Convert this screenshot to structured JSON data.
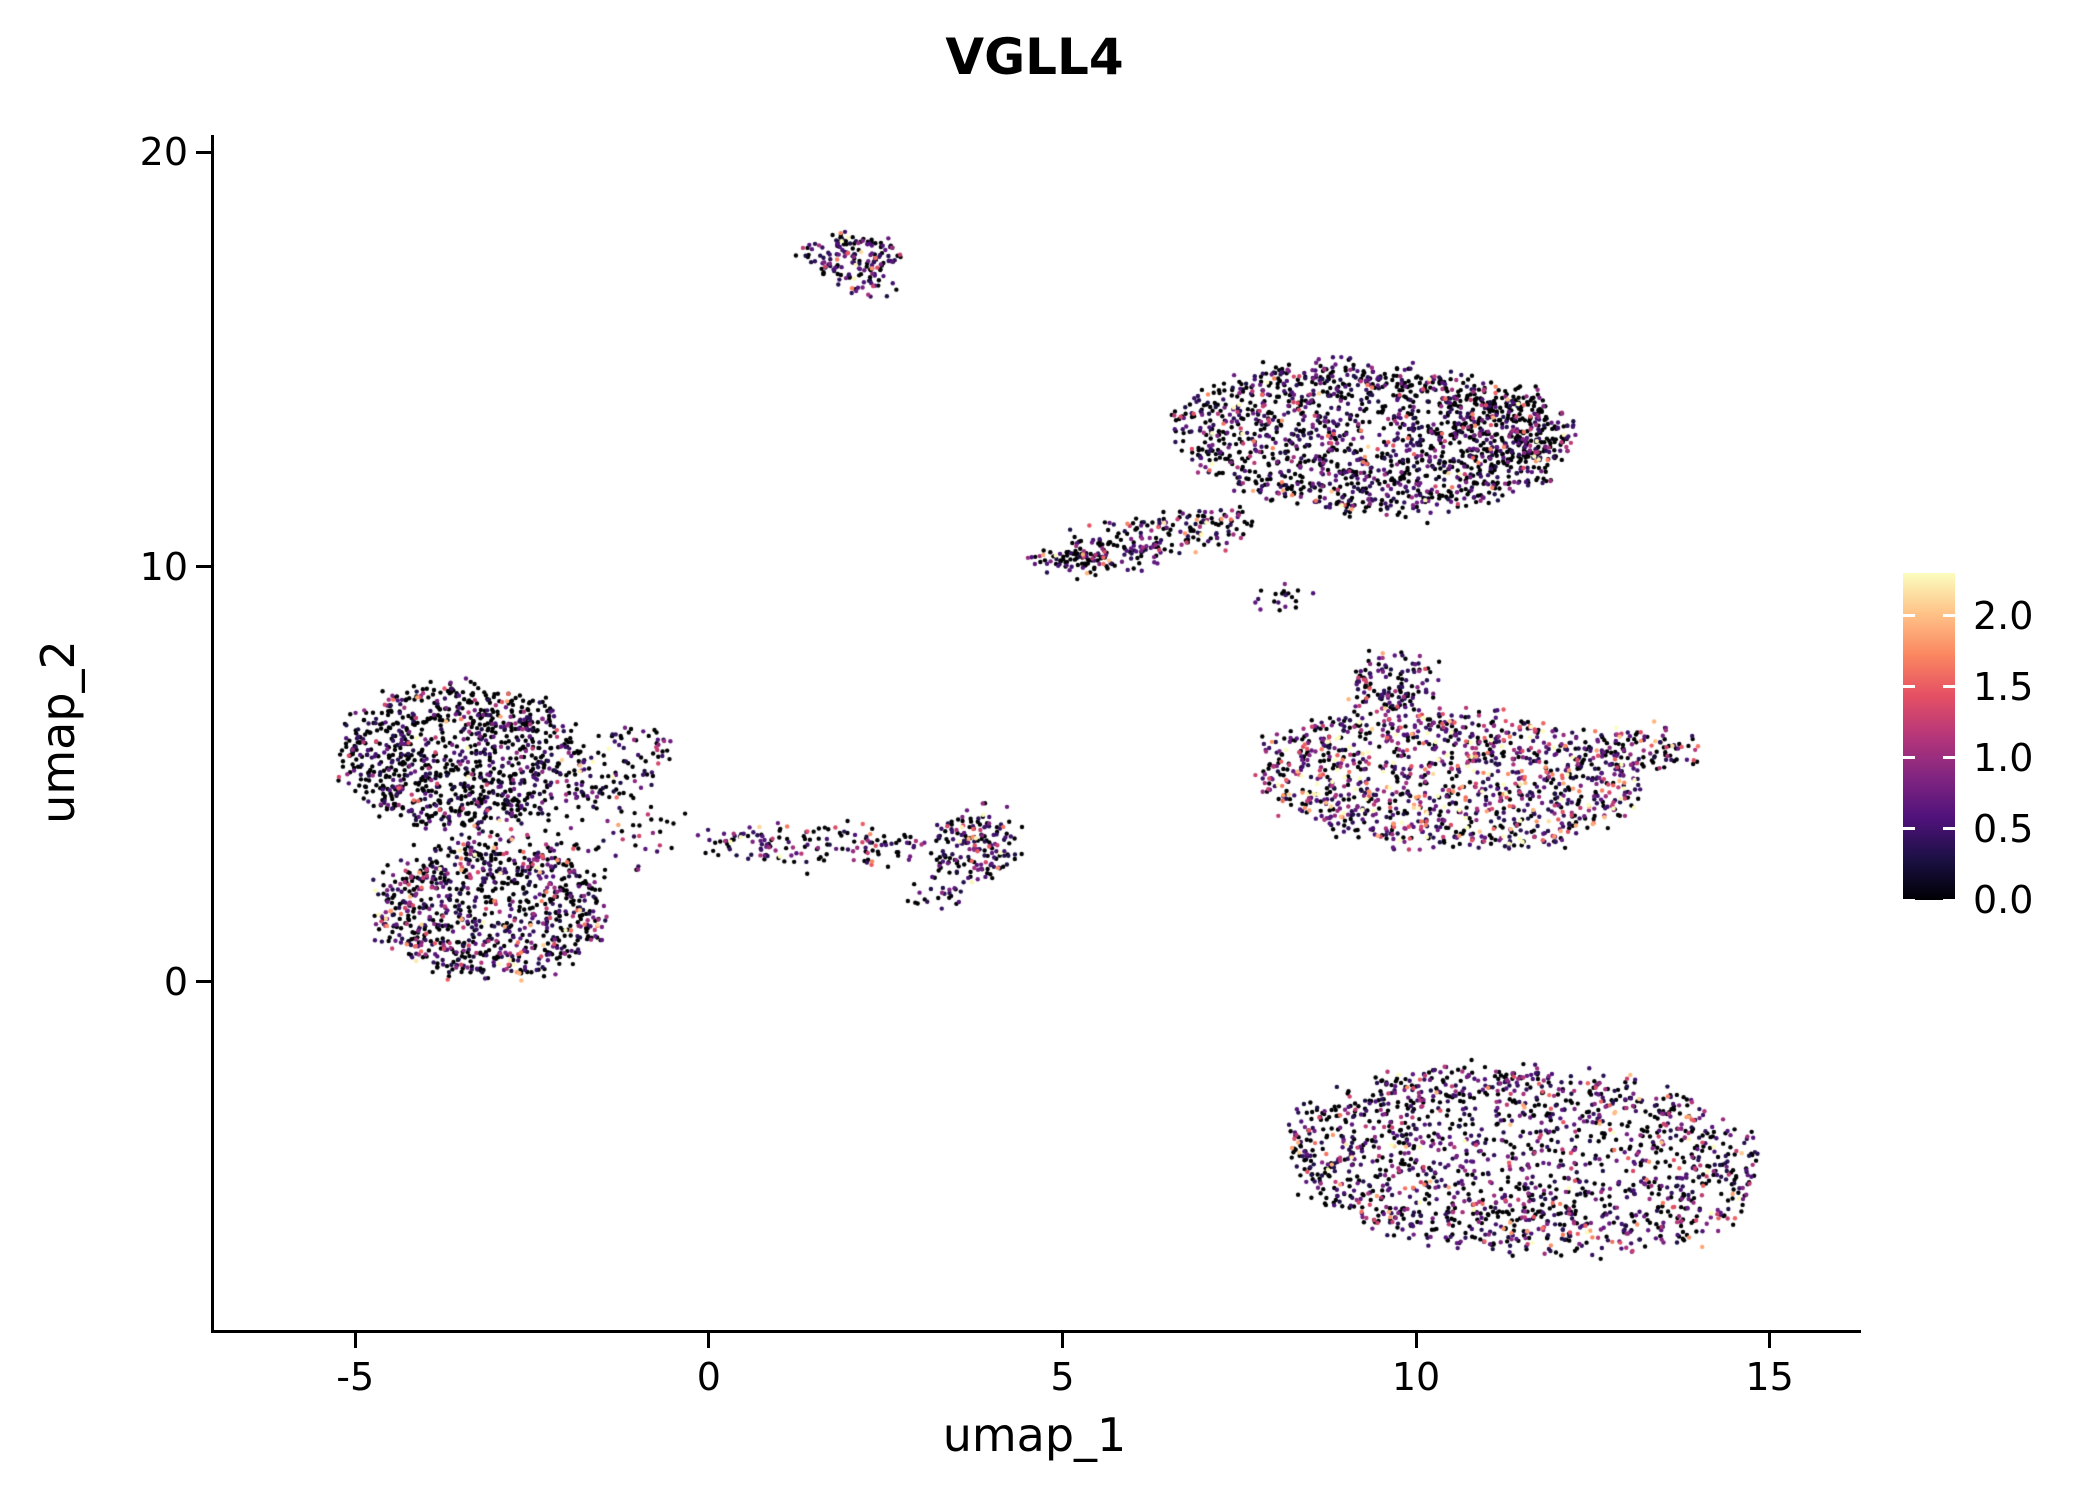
{
  "title": "VGLL4",
  "chart_data": {
    "type": "scatter",
    "title": "VGLL4",
    "xlabel": "umap_1",
    "ylabel": "umap_2",
    "xlim": [
      -7.04,
      16.25
    ],
    "ylim": [
      -8.39,
      20.41
    ],
    "grid": false,
    "background": "#ffffff",
    "axis_color": "#000000",
    "point_radius_px": 2.2,
    "seed": 42,
    "x_ticks": [
      {
        "value": -5,
        "label": "-5"
      },
      {
        "value": 0,
        "label": "0"
      },
      {
        "value": 5,
        "label": "5"
      },
      {
        "value": 10,
        "label": "10"
      },
      {
        "value": 15,
        "label": "15"
      }
    ],
    "y_ticks": [
      {
        "value": 0,
        "label": "0"
      },
      {
        "value": 10,
        "label": "10"
      },
      {
        "value": 20,
        "label": "20"
      }
    ],
    "legend": {
      "position": "right",
      "max_value": 2.3,
      "ticks": [
        {
          "value": 2.0,
          "label": "2.0"
        },
        {
          "value": 1.5,
          "label": "1.5"
        },
        {
          "value": 1.0,
          "label": "1.0"
        },
        {
          "value": 0.5,
          "label": "0.5"
        },
        {
          "value": 0.0,
          "label": "0.0"
        }
      ],
      "colormap": "magma",
      "stops": [
        "#000004",
        "#1c1044",
        "#4f127b",
        "#812581",
        "#b5367a",
        "#e55064",
        "#fb8761",
        "#fec287",
        "#fcfdbf"
      ]
    },
    "clusters": [
      {
        "name": "top-small-blob",
        "cx": 1.95,
        "cy": 17.55,
        "rx": 0.6,
        "ry": 0.55,
        "rot": 0,
        "count": 150,
        "zero_frac": 0.42,
        "expr_scale": 0.5
      },
      {
        "name": "top-small-tail",
        "cx": 2.2,
        "cy": 16.8,
        "rx": 0.25,
        "ry": 0.3,
        "rot": 0,
        "count": 25,
        "zero_frac": 0.4,
        "expr_scale": 0.55
      },
      {
        "name": "upper-right-main",
        "cx": 9.3,
        "cy": 13.1,
        "rx": 2.7,
        "ry": 1.75,
        "rot": -8,
        "count": 1500,
        "zero_frac": 0.52,
        "expr_scale": 0.5
      },
      {
        "name": "upper-right-east",
        "cx": 11.3,
        "cy": 13.4,
        "rx": 0.8,
        "ry": 0.9,
        "rot": 0,
        "count": 220,
        "zero_frac": 0.7,
        "expr_scale": 0.45
      },
      {
        "name": "upper-right-arm",
        "cx": 6.3,
        "cy": 10.7,
        "rx": 1.5,
        "ry": 0.5,
        "rot": 18,
        "count": 230,
        "zero_frac": 0.5,
        "expr_scale": 0.5
      },
      {
        "name": "upper-right-notch",
        "cx": 5.1,
        "cy": 10.15,
        "rx": 0.45,
        "ry": 0.25,
        "rot": 0,
        "count": 60,
        "zero_frac": 0.55,
        "expr_scale": 0.45
      },
      {
        "name": "tiny-mid-cluster",
        "cx": 8.05,
        "cy": 9.3,
        "rx": 0.3,
        "ry": 0.33,
        "rot": 0,
        "count": 20,
        "zero_frac": 0.5,
        "expr_scale": 0.5
      },
      {
        "name": "mid-right-main",
        "cx": 10.4,
        "cy": 4.9,
        "rx": 2.7,
        "ry": 1.6,
        "rot": -7,
        "count": 1200,
        "zero_frac": 0.3,
        "expr_scale": 0.75
      },
      {
        "name": "mid-right-knob",
        "cx": 9.65,
        "cy": 7.2,
        "rx": 0.55,
        "ry": 0.65,
        "rot": 0,
        "count": 130,
        "zero_frac": 0.45,
        "expr_scale": 0.55
      },
      {
        "name": "mid-right-tail",
        "cx": 13.1,
        "cy": 5.6,
        "rx": 0.8,
        "ry": 0.45,
        "rot": 10,
        "count": 120,
        "zero_frac": 0.45,
        "expr_scale": 0.55
      },
      {
        "name": "left-upper-lobe",
        "cx": -3.6,
        "cy": 5.5,
        "rx": 1.6,
        "ry": 1.7,
        "rot": 0,
        "count": 950,
        "zero_frac": 0.62,
        "expr_scale": 0.45
      },
      {
        "name": "left-lower-lobe",
        "cx": -3.1,
        "cy": 1.7,
        "rx": 1.6,
        "ry": 1.6,
        "rot": 0,
        "count": 850,
        "zero_frac": 0.5,
        "expr_scale": 0.55
      },
      {
        "name": "left-arm",
        "cx": -1.35,
        "cy": 5.3,
        "rx": 0.65,
        "ry": 1.0,
        "rot": -25,
        "count": 110,
        "zero_frac": 0.55,
        "expr_scale": 0.45
      },
      {
        "name": "left-scatter",
        "cx": -2.3,
        "cy": 3.6,
        "rx": 1.8,
        "ry": 1.1,
        "rot": 0,
        "count": 150,
        "zero_frac": 0.5,
        "expr_scale": 0.5
      },
      {
        "name": "mid-strip",
        "cx": 1.5,
        "cy": 3.3,
        "rx": 1.6,
        "ry": 0.42,
        "rot": -2,
        "count": 150,
        "zero_frac": 0.45,
        "expr_scale": 0.55
      },
      {
        "name": "mid-strip-blob",
        "cx": 3.7,
        "cy": 3.3,
        "rx": 0.55,
        "ry": 0.8,
        "rot": 0,
        "count": 170,
        "zero_frac": 0.45,
        "expr_scale": 0.55
      },
      {
        "name": "mid-strip-below",
        "cx": 3.2,
        "cy": 2.1,
        "rx": 0.4,
        "ry": 0.3,
        "rot": 0,
        "count": 25,
        "zero_frac": 0.5,
        "expr_scale": 0.45
      },
      {
        "name": "bottom-right",
        "cx": 11.5,
        "cy": -4.3,
        "rx": 3.4,
        "ry": 2.2,
        "rot": -10,
        "count": 1600,
        "zero_frac": 0.45,
        "expr_scale": 0.55
      }
    ]
  }
}
